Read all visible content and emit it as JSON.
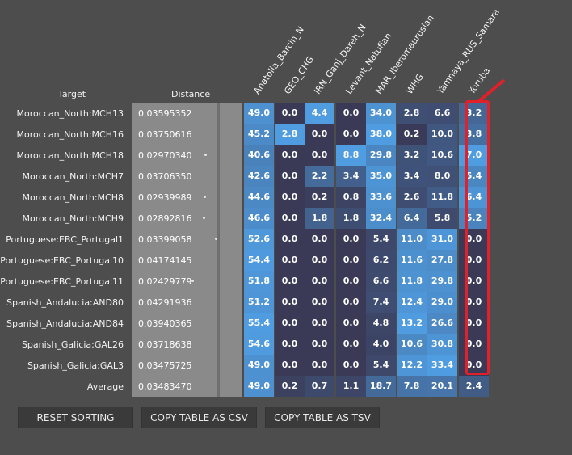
{
  "headers": {
    "target": "Target",
    "distance": "Distance"
  },
  "columns": [
    "Anatolia_Barcin_N",
    "GEO_CHG",
    "IRN_Ganj_Dareh_N",
    "Levant_Natufian",
    "MAR_Iberomaurusian",
    "WHG",
    "Yamnaya_RUS_Samara",
    "Yoruba"
  ],
  "rows": [
    {
      "target": "Moroccan_North:MCH13",
      "distance": "0.03595352",
      "values": [
        "49.0",
        "0.0",
        "4.4",
        "0.0",
        "34.0",
        "2.8",
        "6.6",
        "3.2"
      ]
    },
    {
      "target": "Moroccan_North:MCH16",
      "distance": "0.03750616",
      "values": [
        "45.2",
        "2.8",
        "0.0",
        "0.0",
        "38.0",
        "0.2",
        "10.0",
        "3.8"
      ]
    },
    {
      "target": "Moroccan_North:MCH18",
      "distance": "0.02970340",
      "values": [
        "40.6",
        "0.0",
        "0.0",
        "8.8",
        "29.8",
        "3.2",
        "10.6",
        "7.0"
      ]
    },
    {
      "target": "Moroccan_North:MCH7",
      "distance": "0.03706350",
      "values": [
        "42.6",
        "0.0",
        "2.2",
        "3.4",
        "35.0",
        "3.4",
        "8.0",
        "5.4"
      ]
    },
    {
      "target": "Moroccan_North:MCH8",
      "distance": "0.02939989",
      "values": [
        "44.6",
        "0.0",
        "0.2",
        "0.8",
        "33.6",
        "2.6",
        "11.8",
        "6.4"
      ]
    },
    {
      "target": "Moroccan_North:MCH9",
      "distance": "0.02892816",
      "values": [
        "46.6",
        "0.0",
        "1.8",
        "1.8",
        "32.4",
        "6.4",
        "5.8",
        "5.2"
      ]
    },
    {
      "target": "Portuguese:EBC_Portugal1",
      "distance": "0.03399058",
      "values": [
        "52.6",
        "0.0",
        "0.0",
        "0.0",
        "5.4",
        "11.0",
        "31.0",
        "0.0"
      ]
    },
    {
      "target": "Portuguese:EBC_Portugal10",
      "distance": "0.04174145",
      "values": [
        "54.4",
        "0.0",
        "0.0",
        "0.0",
        "6.2",
        "11.6",
        "27.8",
        "0.0"
      ]
    },
    {
      "target": "Portuguese:EBC_Portugal11",
      "distance": "0.02429779",
      "values": [
        "51.8",
        "0.0",
        "0.0",
        "0.0",
        "6.6",
        "11.8",
        "29.8",
        "0.0"
      ]
    },
    {
      "target": "Spanish_Andalucia:AND80",
      "distance": "0.04291936",
      "values": [
        "51.2",
        "0.0",
        "0.0",
        "0.0",
        "7.4",
        "12.4",
        "29.0",
        "0.0"
      ]
    },
    {
      "target": "Spanish_Andalucia:AND84",
      "distance": "0.03940365",
      "values": [
        "55.4",
        "0.0",
        "0.0",
        "0.0",
        "4.8",
        "13.2",
        "26.6",
        "0.0"
      ]
    },
    {
      "target": "Spanish_Galicia:GAL26",
      "distance": "0.03718638",
      "values": [
        "54.6",
        "0.0",
        "0.0",
        "0.0",
        "4.0",
        "10.6",
        "30.8",
        "0.0"
      ]
    },
    {
      "target": "Spanish_Galicia:GAL3",
      "distance": "0.03475725",
      "values": [
        "49.0",
        "0.0",
        "0.0",
        "0.0",
        "5.4",
        "12.2",
        "33.4",
        "0.0"
      ]
    },
    {
      "target": "Average",
      "distance": "0.03483470",
      "values": [
        "49.0",
        "0.2",
        "0.7",
        "1.1",
        "18.7",
        "7.8",
        "20.1",
        "2.4"
      ]
    }
  ],
  "buttons": {
    "reset": "RESET SORTING",
    "csv": "COPY TABLE AS CSV",
    "tsv": "COPY TABLE AS TSV"
  },
  "colors": {
    "background": "#4d4d4d",
    "highlight": "#e0202a",
    "low": "#3a3a56",
    "high": "#4f9ce0"
  }
}
